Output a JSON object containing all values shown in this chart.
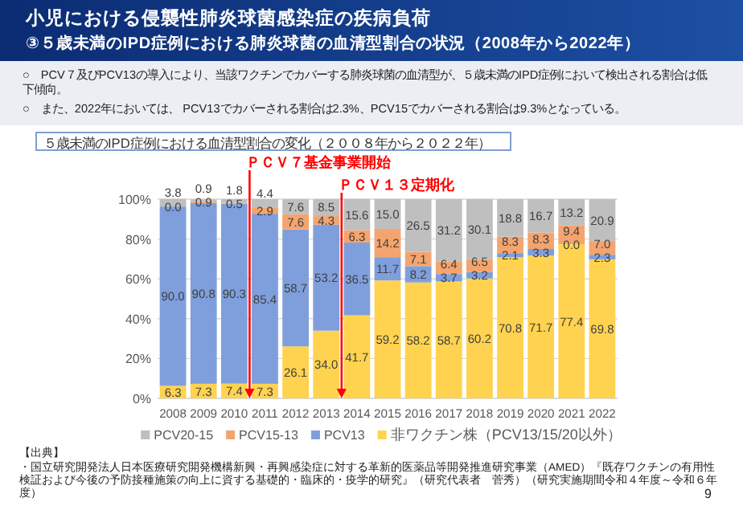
{
  "chart_data": {
    "type": "bar",
    "stacked": true,
    "title": "小児における侵襲性肺炎球菌感染症の疾病負荷",
    "subtitle": "③５歳未満のIPD症例における肺炎球菌の血清型割合の状況（2008年から2022年）",
    "annotations": [
      "○　PCV７及びPCV13の導入により、当該ワクチンでカバーする肺炎球菌の血清型が、５歳未満のIPD症例において検出される割合は低下傾向。",
      "○　また、2022年においては、 PCV13でカバーされる割合は2.3%、PCV15でカバーされる割合は9.3%となっている。",
      "５歳未満のIPD症例における血清型割合の変化（２００８年から２０２２年）",
      "【出典】",
      "・国立研究開発法人日本医療研究開発機構新興・再興感染症に対する革新的医薬品等開発推進研究事業（AMED）『既存ワクチンの有用性検証および今後の予防接種施策の向上に資する基礎的・臨床的・疫学的研究』（研究代表者　菅秀）（研究実施期間令和４年度～令和６年度）",
      "9"
    ],
    "x": [
      2008,
      2009,
      2010,
      2011,
      2012,
      2013,
      2014,
      2015,
      2016,
      2017,
      2018,
      2019,
      2020,
      2021,
      2022
    ],
    "xlim": [
      2007.5,
      2022.5
    ],
    "xticks": [
      2008,
      2009,
      2010,
      2011,
      2012,
      2013,
      2014,
      2015,
      2016,
      2017,
      2018,
      2019,
      2020,
      2021,
      2022
    ],
    "ylim": [
      0,
      100
    ],
    "yticks": [
      {
        "value": 0,
        "label": "0%"
      },
      {
        "value": 20,
        "label": "20%"
      },
      {
        "value": 40,
        "label": "40%"
      },
      {
        "value": 60,
        "label": "60%"
      },
      {
        "value": 80,
        "label": "80%"
      },
      {
        "value": 100,
        "label": "100%"
      }
    ],
    "series": [
      {
        "name": "非ワクチン株（PCV13/15/20以外）",
        "color": "#ffd34f",
        "values": [
          6.3,
          7.3,
          7.4,
          7.3,
          26.1,
          34.0,
          41.7,
          59.2,
          58.2,
          58.7,
          60.2,
          70.8,
          71.7,
          77.4,
          69.8
        ],
        "value_labels": [
          "6.3",
          "7.3",
          "7.4",
          "7.3",
          "26.1",
          "34.0",
          "41.7",
          "59.2",
          "58.2",
          "58.7",
          "60.2",
          "70.8",
          "71.7",
          "77.4",
          "69.8"
        ]
      },
      {
        "name": "PCV13",
        "color": "#7f9fdc",
        "values": [
          90.0,
          90.8,
          90.3,
          85.4,
          58.7,
          53.2,
          36.5,
          11.7,
          8.2,
          3.7,
          3.2,
          2.1,
          3.3,
          0.0,
          2.3
        ],
        "value_labels": [
          "90.0",
          "90.8",
          "90.3",
          "85.4",
          "58.7",
          "53.2",
          "36.5",
          "11.7",
          "8.2",
          "3.7",
          "3.2",
          "2.1",
          "3.3",
          "0.0",
          "2.3"
        ]
      },
      {
        "name": "PCV15-13",
        "color": "#f4a46f",
        "values": [
          0.0,
          0.9,
          0.5,
          2.9,
          7.6,
          4.3,
          6.3,
          14.2,
          7.1,
          6.4,
          6.5,
          8.3,
          8.3,
          9.4,
          7.0
        ],
        "value_labels": [
          "0.0",
          "0.9",
          "0.5",
          "2.9",
          "7.6",
          "4.3",
          "6.3",
          "14.2",
          "7.1",
          "6.4",
          "6.5",
          "8.3",
          "8.3",
          "9.4",
          "7.0"
        ]
      },
      {
        "name": "PCV20-15",
        "color": "#bfbfbf",
        "values": [
          3.8,
          0.9,
          1.8,
          4.4,
          7.6,
          8.5,
          15.6,
          15.0,
          26.5,
          31.2,
          30.1,
          18.8,
          16.7,
          13.2,
          20.9
        ],
        "value_labels": [
          "3.8",
          "0.9",
          "1.8",
          "4.4",
          "7.6",
          "8.5",
          "15.6",
          "15.0",
          "26.5",
          "31.2",
          "30.1",
          "18.8",
          "16.7",
          "13.2",
          "20.9"
        ]
      }
    ],
    "ref_lines": [
      {
        "axis": "x",
        "value": 2010.5,
        "label": "ＰＣＶ７基金事業開始",
        "color": "#ff0000"
      },
      {
        "axis": "x",
        "value": 2013.5,
        "label": "ＰＣＶ１３定期化",
        "color": "#ff0000"
      }
    ],
    "grid": "y",
    "legend": "bottom"
  }
}
